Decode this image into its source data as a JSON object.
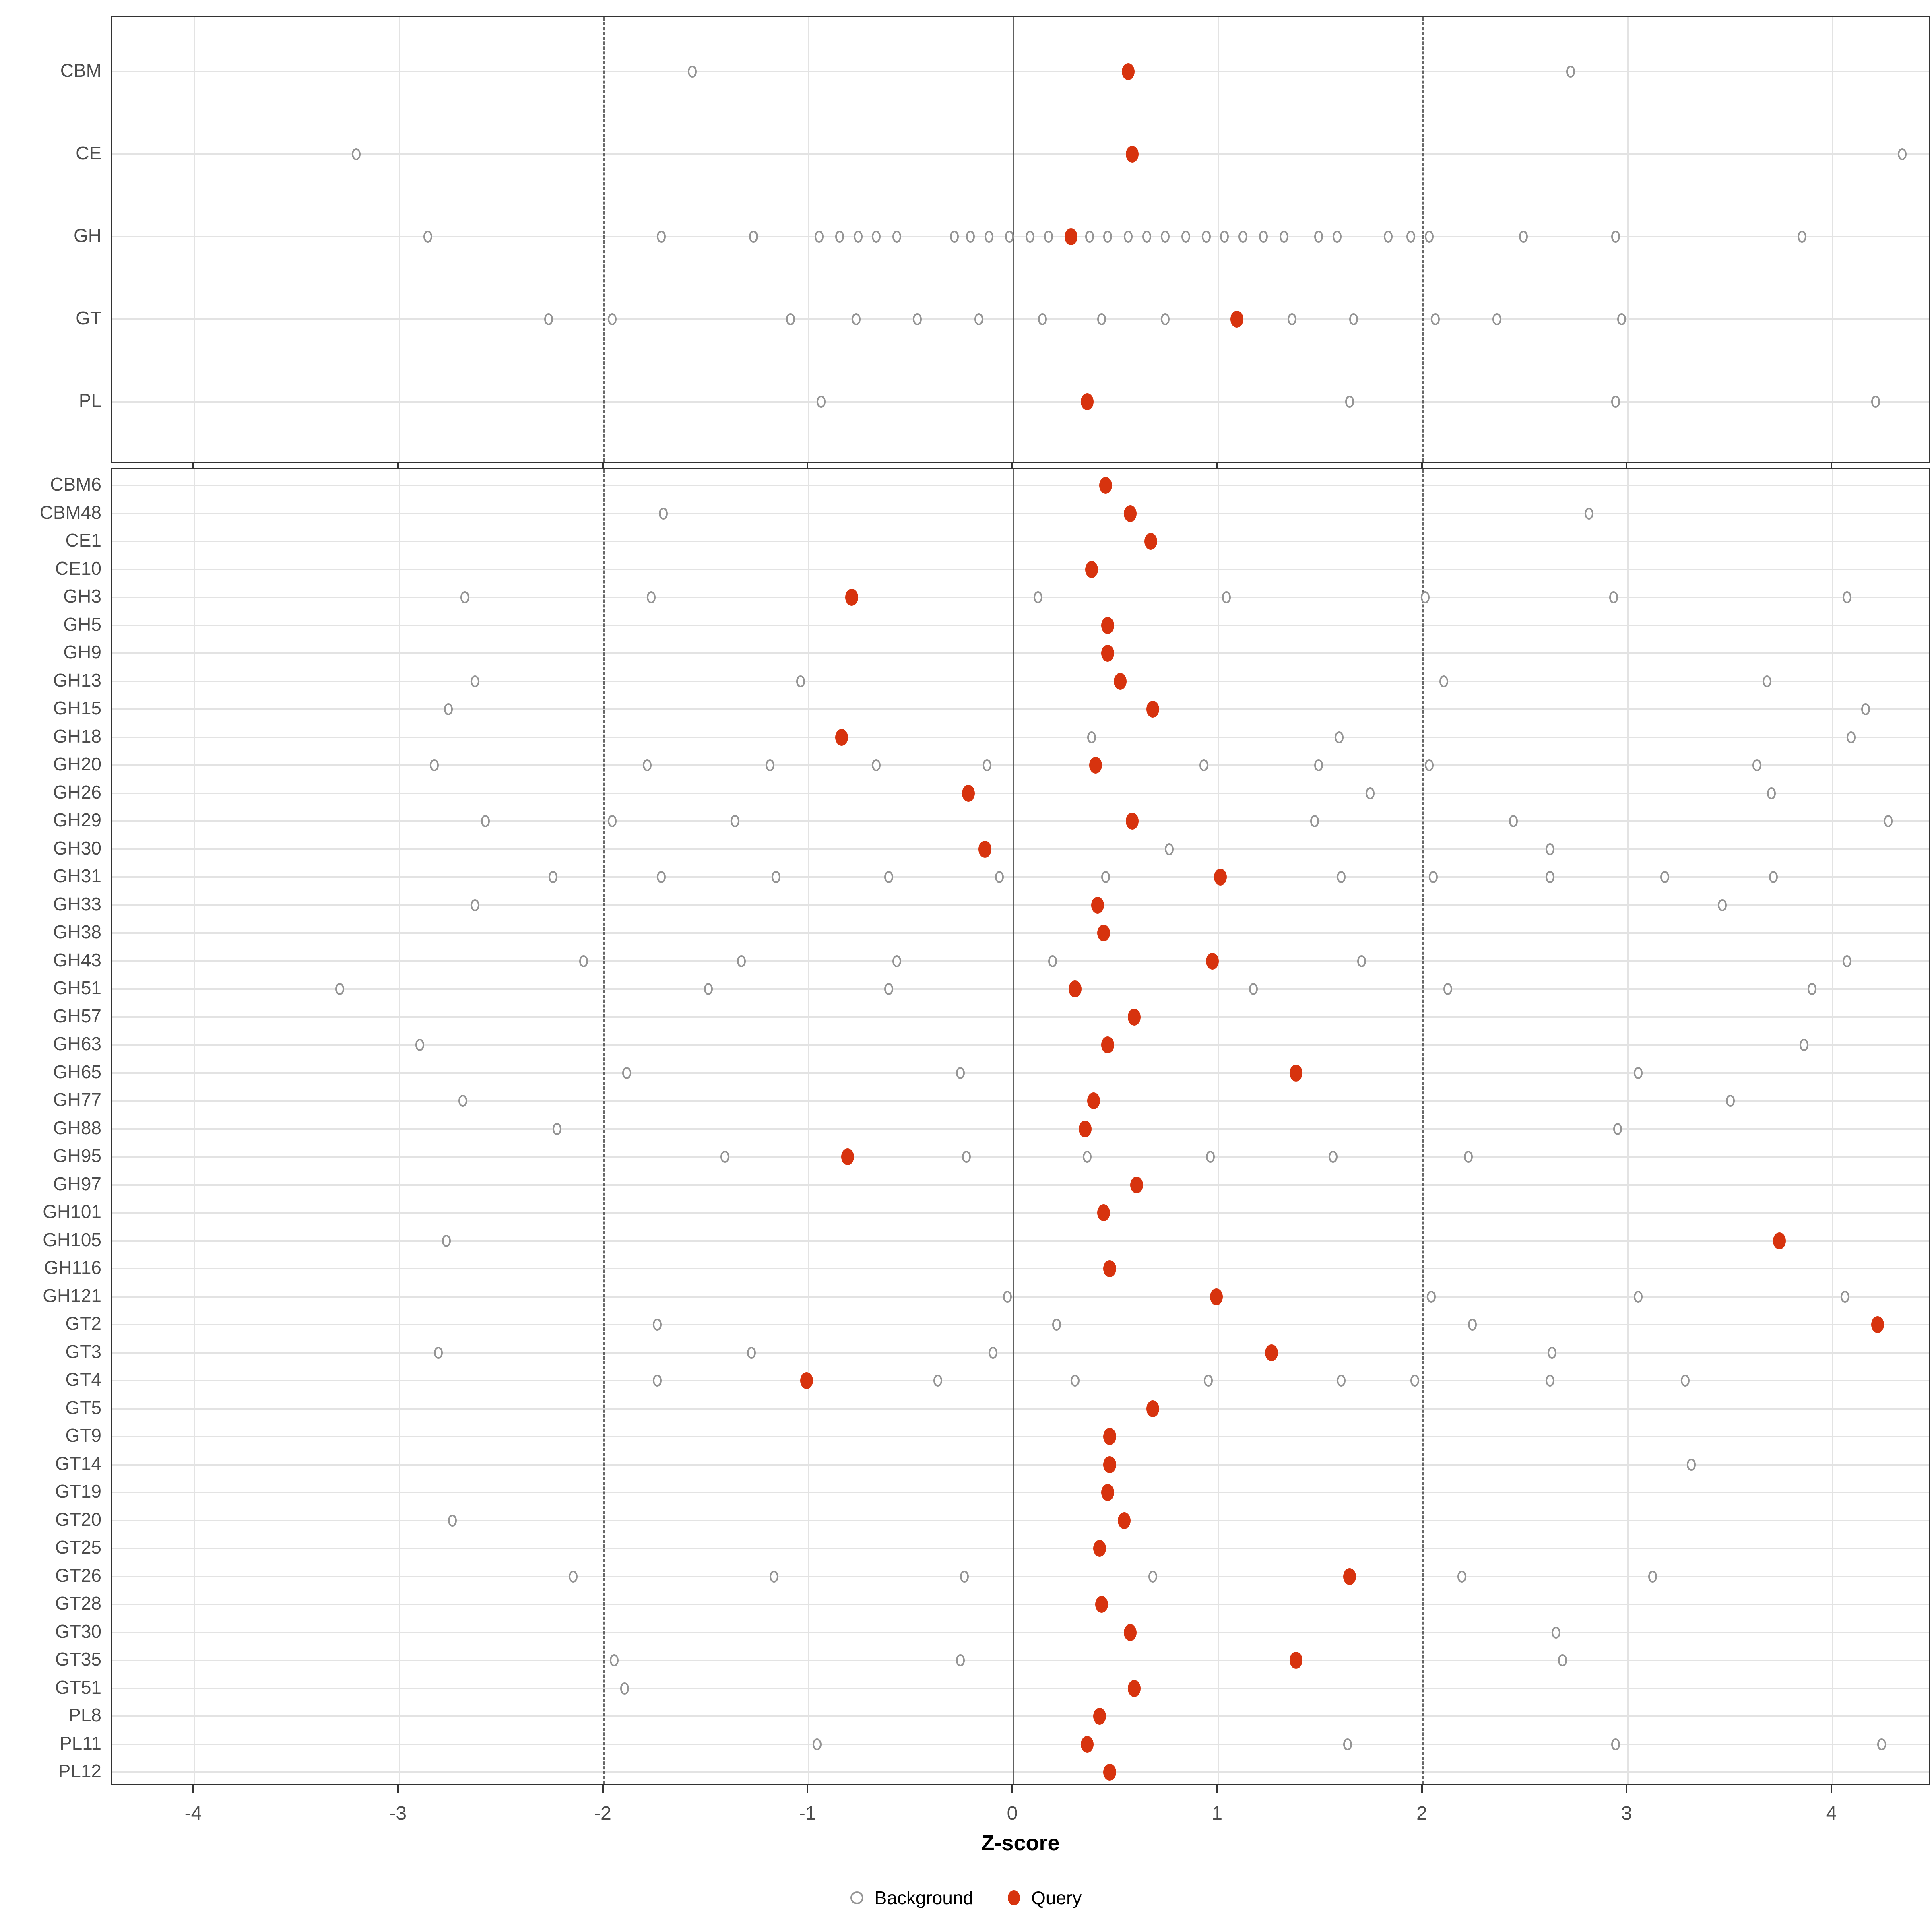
{
  "chart_data": {
    "type": "scatter",
    "title": "",
    "xlabel": "Z-score",
    "x_axis": {
      "min": -4.4,
      "max": 4.48,
      "ticks": [
        -4,
        -3,
        -2,
        -1,
        0,
        1,
        2,
        3,
        4
      ],
      "tick_labels": [
        "-4",
        "-3",
        "-2",
        "-1",
        "0",
        "1",
        "2",
        "3",
        "4"
      ],
      "reference_lines": {
        "solid_at": 0,
        "dashed_at": [
          -2,
          2
        ]
      },
      "grid": true
    },
    "legend": {
      "position": "bottom",
      "items": [
        {
          "label": "Background",
          "marker": "open-circle"
        },
        {
          "label": "Query",
          "marker": "filled-circle"
        }
      ]
    },
    "colors": {
      "query": "#D7330E",
      "background_stroke": "#949494",
      "grid": "#E3E3E3",
      "reference_line": "#4D4D4D",
      "panel_border": "#333333",
      "text": "#4D4D4D"
    },
    "top_panel": {
      "rows": [
        {
          "label": "CBM",
          "background": [
            -2.11,
            2.18
          ],
          "query": 0.02
        },
        {
          "label": "CE",
          "background": [
            -3.75,
            3.8
          ],
          "query": 0.04
        },
        {
          "label": "GH",
          "background": [
            -3.4,
            -2.26,
            -1.81,
            -1.49,
            -1.39,
            -1.3,
            -1.21,
            -1.11,
            -0.83,
            -0.75,
            -0.66,
            -0.56,
            -0.46,
            -0.37,
            -0.17,
            -0.08,
            0.02,
            0.11,
            0.2,
            0.3,
            0.4,
            0.49,
            0.58,
            0.68,
            0.78,
            0.95,
            1.04,
            1.29,
            1.4,
            1.49,
            1.95,
            2.4,
            3.31
          ],
          "query": -0.26
        },
        {
          "label": "GT",
          "background": [
            -2.81,
            -2.5,
            -1.63,
            -1.31,
            -1.01,
            -0.71,
            -0.4,
            -0.11,
            0.2,
            0.82,
            1.12,
            1.52,
            1.82,
            2.43
          ],
          "query": 0.55
        },
        {
          "label": "PL",
          "background": [
            -1.48,
            1.1,
            2.4,
            3.67
          ],
          "query": -0.18
        }
      ]
    },
    "bottom_panel": {
      "rows": [
        {
          "label": "CBM6",
          "background": [],
          "query": -0.09
        },
        {
          "label": "CBM48",
          "background": [
            -2.25,
            2.27
          ],
          "query": 0.03
        },
        {
          "label": "CE1",
          "background": [],
          "query": 0.13
        },
        {
          "label": "CE10",
          "background": [],
          "query": -0.16
        },
        {
          "label": "GH3",
          "background": [
            -3.22,
            -2.31,
            -0.42,
            0.5,
            1.47,
            2.39,
            3.53
          ],
          "query": -1.33
        },
        {
          "label": "GH5",
          "background": [],
          "query": -0.08
        },
        {
          "label": "GH9",
          "background": [],
          "query": -0.08
        },
        {
          "label": "GH13",
          "background": [
            -3.17,
            -1.58,
            1.56,
            3.14
          ],
          "query": -0.02
        },
        {
          "label": "GH15",
          "background": [
            -3.3,
            3.62
          ],
          "query": 0.14
        },
        {
          "label": "GH18",
          "background": [
            -0.16,
            1.05,
            3.55
          ],
          "query": -1.38
        },
        {
          "label": "GH20",
          "background": [
            -3.37,
            -2.33,
            -1.73,
            -1.21,
            -0.67,
            0.39,
            0.95,
            1.49,
            3.09
          ],
          "query": -0.14
        },
        {
          "label": "GH26",
          "background": [
            1.2,
            3.16
          ],
          "query": -0.76
        },
        {
          "label": "GH29",
          "background": [
            -3.12,
            -2.5,
            -1.9,
            0.93,
            1.9,
            3.73
          ],
          "query": 0.04
        },
        {
          "label": "GH30",
          "background": [
            0.22,
            2.08
          ],
          "query": -0.68
        },
        {
          "label": "GH31",
          "background": [
            -2.79,
            -2.26,
            -1.7,
            -1.15,
            -0.61,
            -0.09,
            1.06,
            1.51,
            2.08,
            2.64,
            3.17
          ],
          "query": 0.47
        },
        {
          "label": "GH33",
          "background": [
            -3.17,
            2.92
          ],
          "query": -0.13
        },
        {
          "label": "GH38",
          "background": [],
          "query": -0.1
        },
        {
          "label": "GH43",
          "background": [
            -2.64,
            -1.87,
            -1.11,
            -0.35,
            1.16,
            3.53
          ],
          "query": 0.43
        },
        {
          "label": "GH51",
          "background": [
            -3.83,
            -2.03,
            -1.15,
            0.63,
            1.58,
            3.36
          ],
          "query": -0.24
        },
        {
          "label": "GH57",
          "background": [],
          "query": 0.05
        },
        {
          "label": "GH63",
          "background": [
            -3.44,
            3.32
          ],
          "query": -0.08
        },
        {
          "label": "GH65",
          "background": [
            -2.43,
            -0.8,
            2.51
          ],
          "query": 0.84
        },
        {
          "label": "GH77",
          "background": [
            -3.23,
            2.96
          ],
          "query": -0.15
        },
        {
          "label": "GH88",
          "background": [
            -2.77,
            2.41
          ],
          "query": -0.19
        },
        {
          "label": "GH95",
          "background": [
            -1.95,
            -0.77,
            -0.18,
            0.42,
            1.02,
            1.68
          ],
          "query": -1.35
        },
        {
          "label": "GH97",
          "background": [],
          "query": 0.06
        },
        {
          "label": "GH101",
          "background": [],
          "query": -0.1
        },
        {
          "label": "GH105",
          "background": [
            -3.31
          ],
          "query": 3.2
        },
        {
          "label": "GH116",
          "background": [],
          "query": -0.07
        },
        {
          "label": "GH121",
          "background": [
            -0.57,
            1.5,
            2.51,
            3.52
          ],
          "query": 0.45
        },
        {
          "label": "GT2",
          "background": [
            -2.28,
            -0.33,
            1.7
          ],
          "query": 3.68
        },
        {
          "label": "GT3",
          "background": [
            -3.35,
            -1.82,
            -0.64,
            2.09
          ],
          "query": 0.72
        },
        {
          "label": "GT4",
          "background": [
            -2.28,
            -0.91,
            -0.24,
            0.41,
            1.06,
            1.42,
            2.08,
            2.74
          ],
          "query": -1.55
        },
        {
          "label": "GT5",
          "background": [],
          "query": 0.14
        },
        {
          "label": "GT9",
          "background": [],
          "query": -0.07
        },
        {
          "label": "GT14",
          "background": [
            2.77
          ],
          "query": -0.07
        },
        {
          "label": "GT19",
          "background": [],
          "query": -0.08
        },
        {
          "label": "GT20",
          "background": [
            -3.28
          ],
          "query": 0.0
        },
        {
          "label": "GT25",
          "background": [],
          "query": -0.12
        },
        {
          "label": "GT26",
          "background": [
            -2.69,
            -1.71,
            -0.78,
            0.14,
            1.65,
            2.58
          ],
          "query": 1.1
        },
        {
          "label": "GT28",
          "background": [],
          "query": -0.11
        },
        {
          "label": "GT30",
          "background": [
            2.11
          ],
          "query": 0.03
        },
        {
          "label": "GT35",
          "background": [
            -2.49,
            -0.8,
            2.14
          ],
          "query": 0.84
        },
        {
          "label": "GT51",
          "background": [
            -2.44
          ],
          "query": 0.05
        },
        {
          "label": "PL8",
          "background": [],
          "query": -0.12
        },
        {
          "label": "PL11",
          "background": [
            -1.5,
            1.09,
            2.4,
            3.7
          ],
          "query": -0.18
        },
        {
          "label": "PL12",
          "background": [],
          "query": -0.07
        }
      ]
    }
  }
}
